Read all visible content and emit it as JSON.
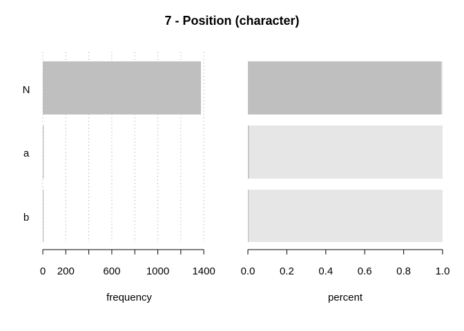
{
  "chart_data": {
    "title": "7 - Position (character)",
    "categories": [
      "N",
      "a",
      "b"
    ],
    "panels": [
      {
        "type": "bar",
        "orientation": "horizontal",
        "xlabel": "frequency",
        "xlim": [
          0,
          1500
        ],
        "ticks": [
          0,
          200,
          400,
          600,
          800,
          1000,
          1200,
          1400
        ],
        "tick_labels": [
          "0",
          "200",
          "",
          "600",
          "",
          "1000",
          "",
          "1400"
        ],
        "grid": true,
        "values": [
          1375,
          8,
          1
        ],
        "bar_color": "#bfbfbf"
      },
      {
        "type": "bar",
        "orientation": "horizontal",
        "stacked_background": true,
        "xlabel": "percent",
        "xlim": [
          0,
          1
        ],
        "ticks": [
          0,
          0.2,
          0.4,
          0.6,
          0.8,
          1.0
        ],
        "tick_labels": [
          "0.0",
          "0.2",
          "0.4",
          "0.6",
          "0.8",
          "1.0"
        ],
        "grid": false,
        "values": [
          0.9935,
          0.0058,
          0.0007
        ],
        "bar_color": "#bfbfbf",
        "background_color": "#e6e6e6"
      }
    ]
  }
}
